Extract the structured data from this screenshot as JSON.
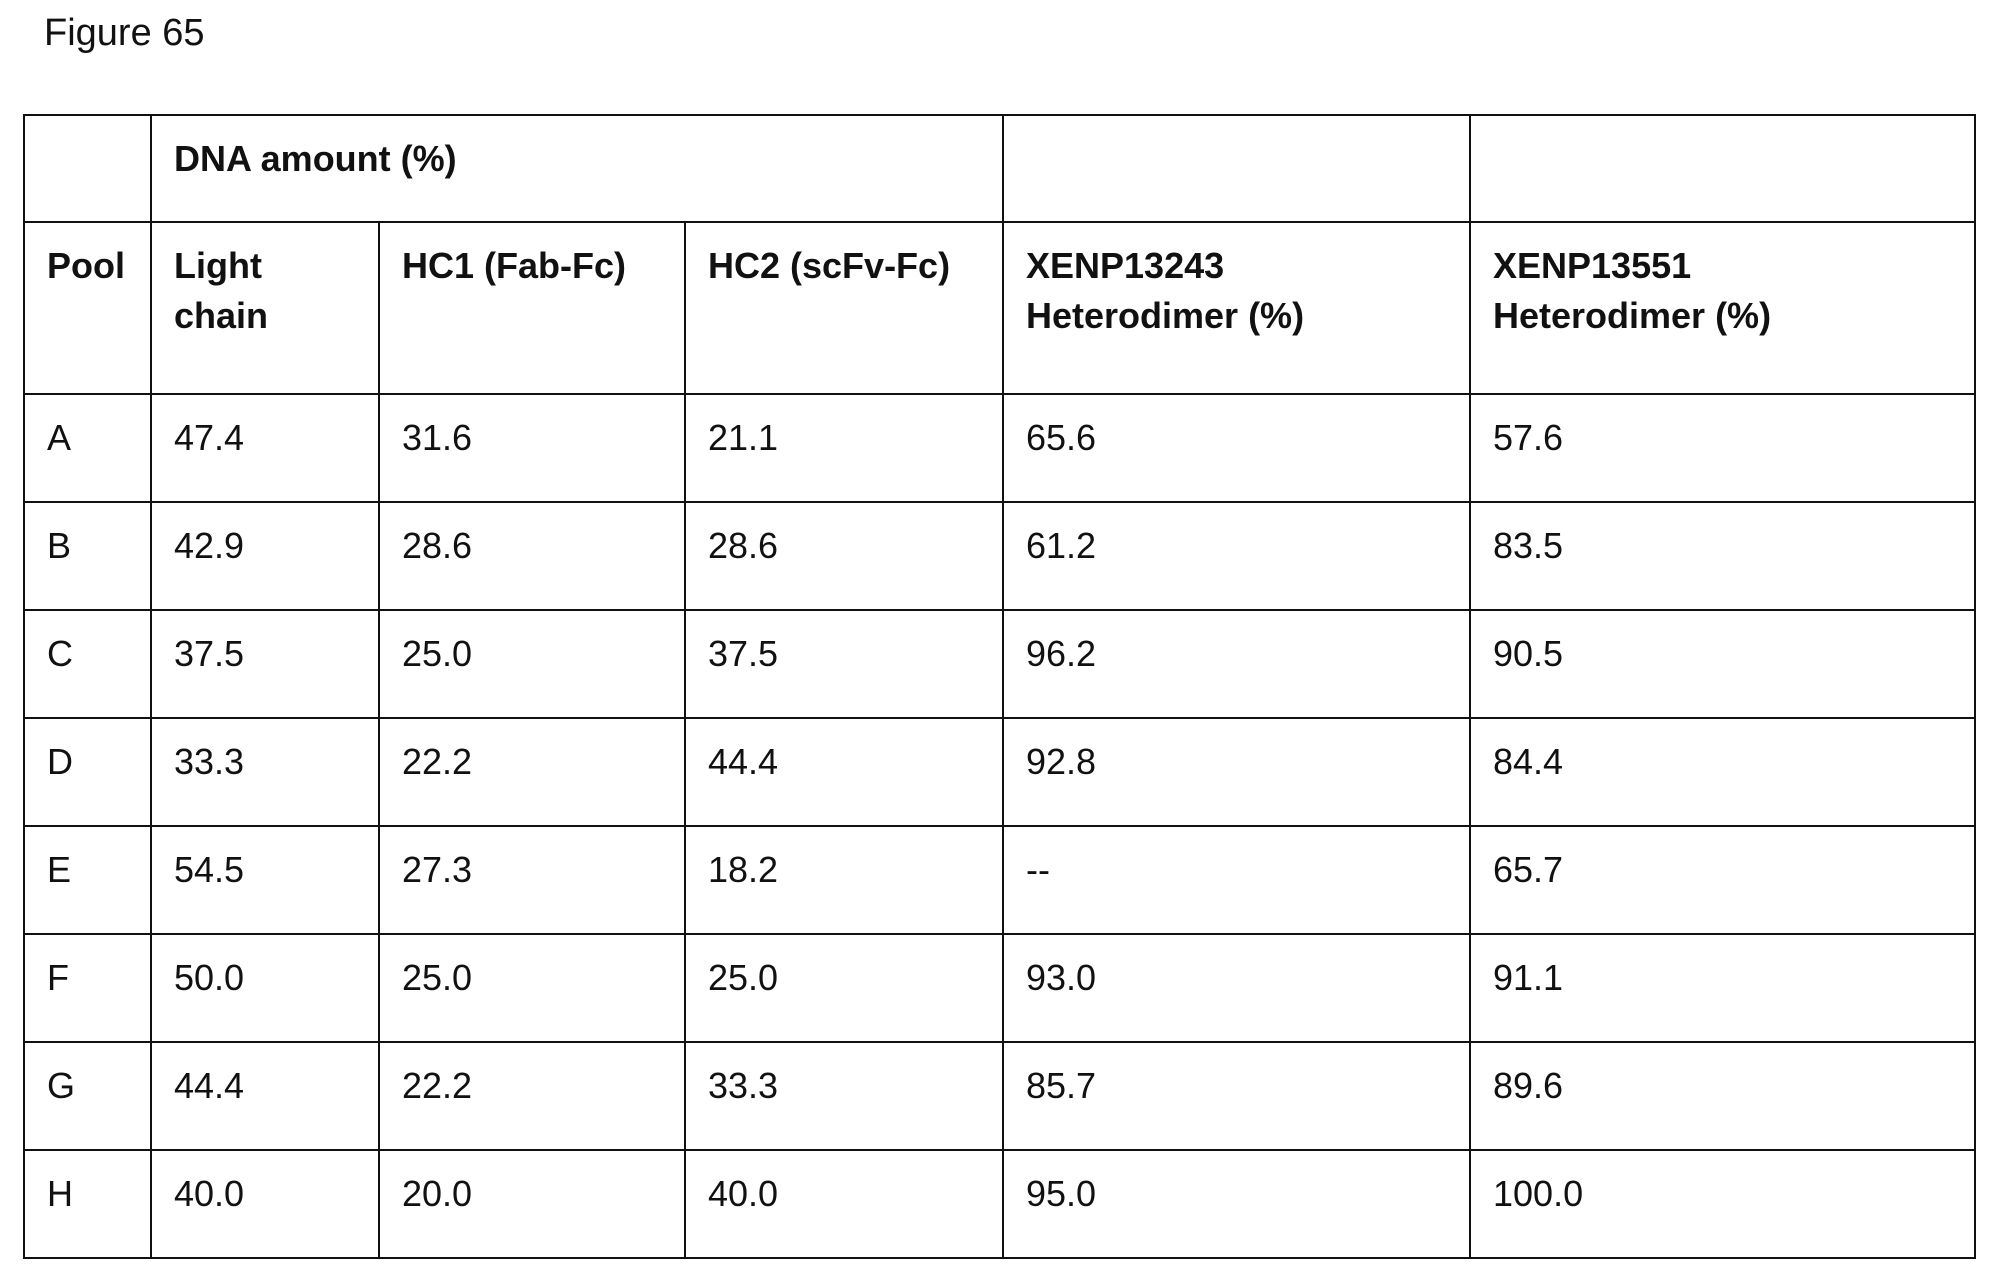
{
  "figure_title": "Figure 65",
  "table": {
    "group_header": [
      "",
      "DNA amount (%)",
      "",
      ""
    ],
    "columns": [
      "Pool",
      "Light chain",
      "HC1 (Fab-Fc)",
      "HC2 (scFv-Fc)",
      "XENP13243 Heterodimer (%)",
      "XENP13551 Heterodimer (%)"
    ],
    "rows": [
      [
        "A",
        "47.4",
        "31.6",
        "21.1",
        "65.6",
        "57.6"
      ],
      [
        "B",
        "42.9",
        "28.6",
        "28.6",
        "61.2",
        "83.5"
      ],
      [
        "C",
        "37.5",
        "25.0",
        "37.5",
        "96.2",
        "90.5"
      ],
      [
        "D",
        "33.3",
        "22.2",
        "44.4",
        "92.8",
        "84.4"
      ],
      [
        "E",
        "54.5",
        "27.3",
        "18.2",
        "--",
        "65.7"
      ],
      [
        "F",
        "50.0",
        "25.0",
        "25.0",
        "93.0",
        "91.1"
      ],
      [
        "G",
        "44.4",
        "22.2",
        "33.3",
        "85.7",
        "89.6"
      ],
      [
        "H",
        "40.0",
        "20.0",
        "40.0",
        "95.0",
        "100.0"
      ]
    ]
  }
}
